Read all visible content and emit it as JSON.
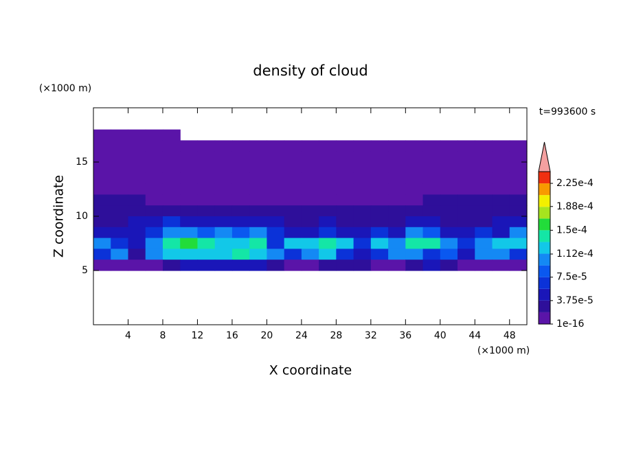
{
  "chart_data": {
    "type": "contour",
    "title": "density of cloud",
    "x_label": "X coordinate",
    "y_label": "Z coordinate",
    "x_unit": "(×1000 m)",
    "y_unit": "(×1000 m)",
    "time_label": "t=993600 s",
    "xlim": [
      0,
      50
    ],
    "ylim": [
      0,
      20
    ],
    "xticks": [
      4,
      8,
      12,
      16,
      20,
      24,
      28,
      32,
      36,
      40,
      44,
      48
    ],
    "yticks": [
      5,
      10,
      15
    ],
    "x": [
      1,
      3,
      5,
      7,
      9,
      11,
      13,
      15,
      17,
      19,
      21,
      23,
      25,
      27,
      29,
      31,
      33,
      35,
      37,
      39,
      41,
      43,
      45,
      47,
      49
    ],
    "y": [
      17.5,
      16.5,
      15.5,
      14.5,
      13.5,
      12.5,
      11.5,
      10.5,
      9.5,
      8.5,
      7.5,
      6.5,
      5.5
    ],
    "values": [
      [
        1e-05,
        1e-05,
        1e-05,
        1e-05,
        1e-05,
        null,
        null,
        null,
        null,
        null,
        null,
        null,
        null,
        null,
        null,
        null,
        null,
        null,
        null,
        null,
        null,
        null,
        null,
        null,
        null
      ],
      [
        1e-05,
        1e-05,
        1e-05,
        1e-05,
        1e-05,
        1e-05,
        1e-05,
        1e-05,
        1e-05,
        1e-05,
        1e-05,
        1e-05,
        1e-05,
        1e-05,
        1e-05,
        1e-05,
        1e-05,
        1e-05,
        1e-05,
        1e-05,
        1e-05,
        1e-05,
        1e-05,
        1e-05,
        1e-05
      ],
      [
        1e-05,
        1e-05,
        1e-05,
        1e-05,
        1e-05,
        1e-05,
        1e-05,
        1e-05,
        1e-05,
        1e-05,
        1e-05,
        1e-05,
        1e-05,
        1e-05,
        1e-05,
        1e-05,
        1e-05,
        1e-05,
        1e-05,
        1e-05,
        1e-05,
        1e-05,
        1e-05,
        1e-05,
        1e-05
      ],
      [
        1e-05,
        1e-05,
        1e-05,
        1e-05,
        1e-05,
        1e-05,
        1e-05,
        1e-05,
        1e-05,
        1e-05,
        1e-05,
        1e-05,
        1e-05,
        1e-05,
        1e-05,
        1e-05,
        1e-05,
        1e-05,
        1e-05,
        1e-05,
        1e-05,
        1e-05,
        1e-05,
        1e-05,
        1e-05
      ],
      [
        1e-05,
        1e-05,
        1e-05,
        1e-05,
        1e-05,
        1e-05,
        1e-05,
        1e-05,
        1e-05,
        1e-05,
        1e-05,
        1e-05,
        1e-05,
        1e-05,
        1e-05,
        1e-05,
        1e-05,
        1e-05,
        1e-05,
        1e-05,
        1e-05,
        1e-05,
        1e-05,
        1e-05,
        1e-05
      ],
      [
        1e-05,
        1e-05,
        1e-05,
        1e-05,
        1e-05,
        1e-05,
        1e-05,
        1e-05,
        1e-05,
        1e-05,
        1e-05,
        1e-05,
        1e-05,
        1e-05,
        1e-05,
        1e-05,
        1e-05,
        1e-05,
        1e-05,
        1e-05,
        1e-05,
        1e-05,
        1e-05,
        1e-05,
        1e-05
      ],
      [
        2.5e-05,
        2.5e-05,
        2.5e-05,
        1e-05,
        1e-05,
        1e-05,
        1e-05,
        1e-05,
        1e-05,
        1e-05,
        1e-05,
        1e-05,
        1e-05,
        1e-05,
        1e-05,
        1e-05,
        1e-05,
        1e-05,
        1e-05,
        2.5e-05,
        2.5e-05,
        2.5e-05,
        2.5e-05,
        2.5e-05,
        2.5e-05
      ],
      [
        2.5e-05,
        2.5e-05,
        2.5e-05,
        2.5e-05,
        2.5e-05,
        2.5e-05,
        2.5e-05,
        2.5e-05,
        2.5e-05,
        2.5e-05,
        2.5e-05,
        2.5e-05,
        2.5e-05,
        2.5e-05,
        2.5e-05,
        2.5e-05,
        2.5e-05,
        2.5e-05,
        2.5e-05,
        2.5e-05,
        2.5e-05,
        2.5e-05,
        2.5e-05,
        2.5e-05,
        2.5e-05
      ],
      [
        2.5e-05,
        2.5e-05,
        4.5e-05,
        4.5e-05,
        6.5e-05,
        4.5e-05,
        4.5e-05,
        4.5e-05,
        4.5e-05,
        4.5e-05,
        4.5e-05,
        2.5e-05,
        2.5e-05,
        4.5e-05,
        2.5e-05,
        2.5e-05,
        2.5e-05,
        2.5e-05,
        4.5e-05,
        4.5e-05,
        2.5e-05,
        2.5e-05,
        2.5e-05,
        4.5e-05,
        4.5e-05
      ],
      [
        4.5e-05,
        4.5e-05,
        4.5e-05,
        6.5e-05,
        0.0001,
        0.0001,
        8.5e-05,
        0.0001,
        8.5e-05,
        0.0001,
        6.5e-05,
        4.5e-05,
        4.5e-05,
        6.5e-05,
        4.5e-05,
        4.5e-05,
        6.5e-05,
        4.5e-05,
        0.0001,
        8.5e-05,
        4.5e-05,
        4.5e-05,
        6.5e-05,
        4.5e-05,
        0.0001
      ],
      [
        0.0001,
        6.5e-05,
        4.5e-05,
        0.0001,
        0.00014,
        0.00016,
        0.00014,
        0.00012,
        0.00012,
        0.00014,
        6.5e-05,
        0.00012,
        0.00012,
        0.00014,
        0.00012,
        6.5e-05,
        0.00012,
        0.0001,
        0.00014,
        0.00014,
        0.0001,
        6.5e-05,
        0.0001,
        0.00012,
        0.00012
      ],
      [
        6.5e-05,
        0.0001,
        2.5e-05,
        0.0001,
        0.00012,
        0.00012,
        0.00012,
        0.00012,
        0.00014,
        0.00012,
        0.0001,
        6.5e-05,
        0.0001,
        0.00012,
        6.5e-05,
        4.5e-05,
        6.5e-05,
        0.0001,
        0.0001,
        6.5e-05,
        8.5e-05,
        4.5e-05,
        0.0001,
        0.0001,
        6.5e-05
      ],
      [
        1e-05,
        1e-05,
        1e-05,
        1e-05,
        2.5e-05,
        4.5e-05,
        4.5e-05,
        4.5e-05,
        4.5e-05,
        4.5e-05,
        2.5e-05,
        1e-05,
        1e-05,
        2.5e-05,
        2.5e-05,
        2.5e-05,
        1e-05,
        1e-05,
        2.5e-05,
        4.5e-05,
        2.5e-05,
        1e-05,
        1e-05,
        1e-05,
        1e-05
      ]
    ],
    "colorbar": {
      "clim": [
        1e-16,
        0.00024375
      ],
      "colors": [
        "#5a14a8",
        "#2e0f9a",
        "#1a16b8",
        "#0b32d8",
        "#0a58f0",
        "#1489f4",
        "#12c8e8",
        "#14e6a6",
        "#22dc3a",
        "#a6e41e",
        "#f2f000",
        "#f89a00",
        "#f03010"
      ],
      "extend_color": "#f4a0a0",
      "ticks": [
        1e-16,
        {
          "value": 3.75e-05,
          "label": "3.75e-5"
        },
        {
          "value": 7.5e-05,
          "label": "7.5e-5"
        },
        {
          "value": 0.000112,
          "label": "1.12e-4"
        },
        {
          "value": 0.00015,
          "label": "1.5e-4"
        },
        {
          "value": 0.000188,
          "label": "1.88e-4"
        },
        {
          "value": 0.000225,
          "label": "2.25e-4"
        }
      ]
    }
  }
}
